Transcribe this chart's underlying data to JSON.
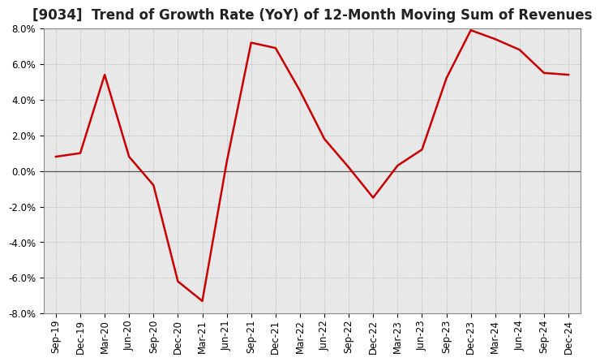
{
  "title": "[9034]  Trend of Growth Rate (YoY) of 12-Month Moving Sum of Revenues",
  "x_labels": [
    "Sep-19",
    "Dec-19",
    "Mar-20",
    "Jun-20",
    "Sep-20",
    "Dec-20",
    "Mar-21",
    "Jun-21",
    "Sep-21",
    "Dec-21",
    "Mar-22",
    "Jun-22",
    "Sep-22",
    "Dec-22",
    "Mar-23",
    "Jun-23",
    "Sep-23",
    "Dec-23",
    "Mar-24",
    "Jun-24",
    "Sep-24",
    "Dec-24"
  ],
  "y_values": [
    0.8,
    1.0,
    5.4,
    0.8,
    -0.8,
    -6.2,
    -7.3,
    0.5,
    7.2,
    6.9,
    4.5,
    1.8,
    0.2,
    -1.5,
    0.3,
    1.2,
    5.2,
    7.9,
    7.4,
    6.8,
    5.5,
    5.4
  ],
  "line_color": "#cc0000",
  "background_color": "#e8e8e8",
  "grid_color": "#aaaaaa",
  "zero_line_color": "#555555",
  "ylim": [
    -8.0,
    8.0
  ],
  "yticks": [
    -8.0,
    -6.0,
    -4.0,
    -2.0,
    0.0,
    2.0,
    4.0,
    6.0,
    8.0
  ],
  "title_fontsize": 12,
  "tick_fontsize": 8.5
}
